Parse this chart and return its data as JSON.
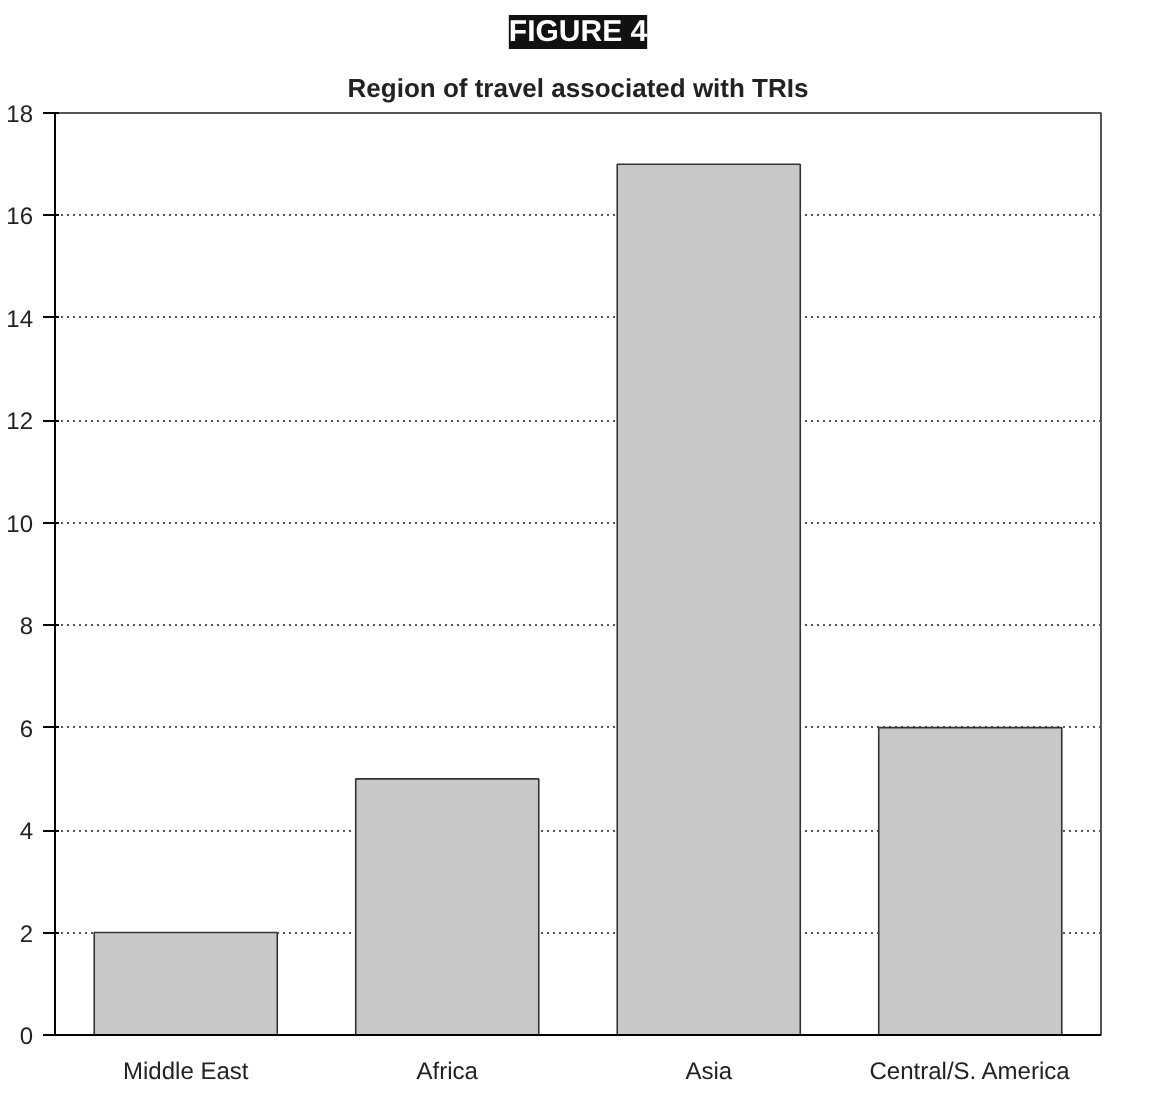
{
  "chart_data": {
    "type": "bar",
    "title": "FIGURE 4",
    "subtitle": "Region of travel associated with TRIs",
    "categories": [
      "Middle East",
      "Africa",
      "Asia",
      "Central/S. America"
    ],
    "values": [
      2,
      5,
      17,
      6
    ],
    "color": "#c8c8c8",
    "ylim": [
      0,
      18
    ],
    "yticks": [
      0,
      2,
      4,
      6,
      8,
      10,
      12,
      14,
      16,
      18
    ],
    "grid": "y"
  }
}
